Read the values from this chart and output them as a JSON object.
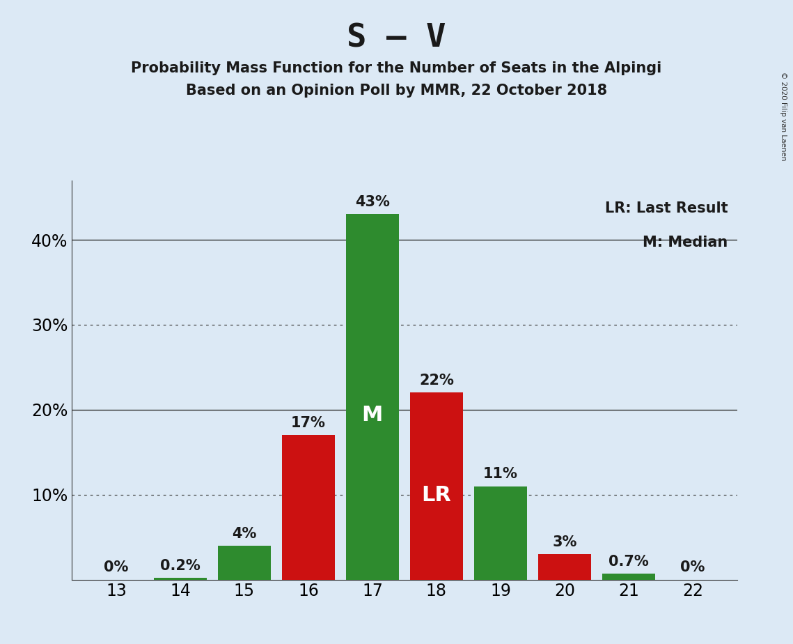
{
  "title": "S – V",
  "subtitle1": "Probability Mass Function for the Number of Seats in the Alpingi",
  "subtitle2": "Based on an Opinion Poll by MMR, 22 October 2018",
  "copyright": "© 2020 Filip van Laenen",
  "seats": [
    13,
    14,
    15,
    16,
    17,
    18,
    19,
    20,
    21,
    22
  ],
  "values": [
    0.0,
    0.2,
    4.0,
    17.0,
    43.0,
    22.0,
    11.0,
    3.0,
    0.7,
    0.0
  ],
  "bar_colors": [
    "#2e8b2e",
    "#2e8b2e",
    "#2e8b2e",
    "#cc1111",
    "#2e8b2e",
    "#cc1111",
    "#2e8b2e",
    "#cc1111",
    "#2e8b2e",
    "#2e8b2e"
  ],
  "labels": [
    "0%",
    "0.2%",
    "4%",
    "17%",
    "43%",
    "22%",
    "11%",
    "3%",
    "0.7%",
    "0%"
  ],
  "median_seat": 17,
  "lr_seat": 18,
  "background_color": "#dce9f5",
  "legend_lr": "LR: Last Result",
  "legend_m": "M: Median",
  "ylim": [
    0,
    47
  ],
  "yticks": [
    0,
    10,
    20,
    30,
    40
  ],
  "dotted_yticks": [
    10,
    30
  ],
  "solid_yticks": [
    20,
    40
  ],
  "green_color": "#2e8b2e",
  "red_color": "#cc1111",
  "title_fontsize": 34,
  "subtitle_fontsize": 15,
  "label_fontsize": 15,
  "tick_fontsize": 17,
  "legend_fontsize": 15,
  "inner_label_fontsize": 22,
  "bar_width": 0.82
}
